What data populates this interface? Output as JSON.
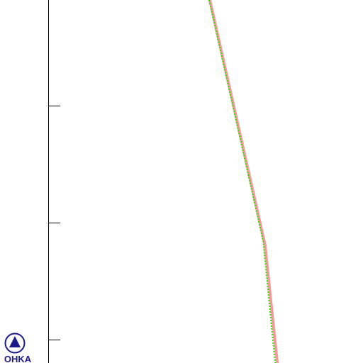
{
  "chart_data": {
    "type": "line",
    "logo_text": "OHKA",
    "xlim": [
      0,
      100
    ],
    "ylim": [
      0.8,
      3.9
    ],
    "yticks": [
      1,
      2,
      3
    ],
    "series": [
      {
        "color": "#f59a9a",
        "style": "solid",
        "x": [
          57.8,
          73.0,
          76.4
        ],
        "values": [
          3.9,
          1.81,
          0.8
        ]
      },
      {
        "color": "#33dd00",
        "style": "dotted",
        "x": [
          57.6,
          72.5,
          75.8
        ],
        "values": [
          3.9,
          1.84,
          0.8
        ]
      }
    ]
  }
}
